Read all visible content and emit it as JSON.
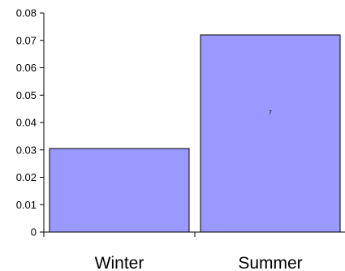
{
  "chart_data": {
    "type": "bar",
    "categories": [
      "Winter",
      "Summer"
    ],
    "values": [
      0.0305,
      0.072
    ],
    "ylim": [
      0,
      0.08
    ],
    "yticks": [
      "0",
      "0.01",
      "0.02",
      "0.03",
      "0.04",
      "0.05",
      "0.06",
      "0.07",
      "0.08"
    ],
    "yticks_values": [
      0,
      0.01,
      0.02,
      0.03,
      0.04,
      0.05,
      0.06,
      0.07,
      0.08
    ],
    "annotations": [
      {
        "category": "Summer",
        "text": "7"
      }
    ],
    "grid": false,
    "legend": "none",
    "bar_color": "#9999ff",
    "bar_edge_color": "#000000"
  }
}
